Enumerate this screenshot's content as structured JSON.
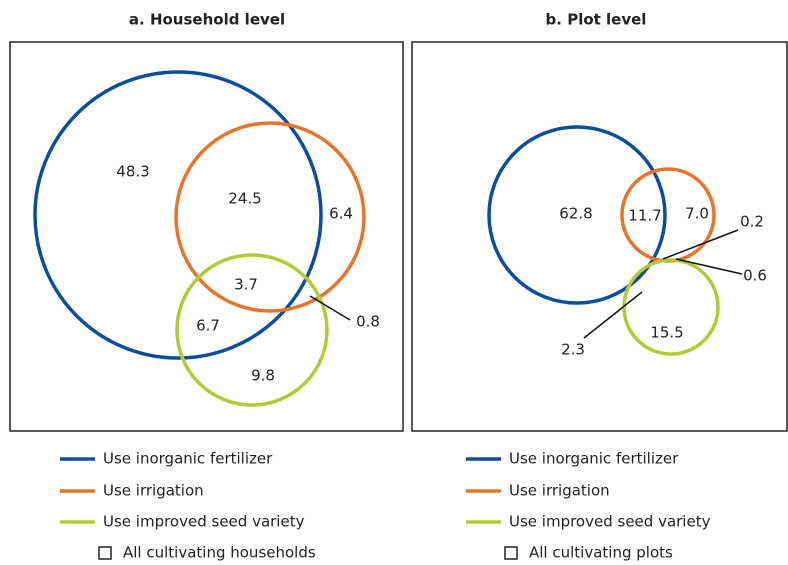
{
  "panels": [
    {
      "title": "a. Household level",
      "regions": [
        "48.3",
        "24.5",
        "6.4",
        "3.7",
        "0.8",
        "6.7",
        "9.8"
      ],
      "legend": [
        "Use inorganic fertilizer",
        "Use irrigation",
        "Use improved seed variety",
        "All cultivating households"
      ]
    },
    {
      "title": "b. Plot level",
      "regions": [
        "62.8",
        "11.7",
        "7.0",
        "0.2",
        "0.6",
        "15.5",
        "2.3"
      ],
      "legend": [
        "Use inorganic fertilizer",
        "Use irrigation",
        "Use improved seed variety",
        "All cultivating plots"
      ]
    }
  ]
}
